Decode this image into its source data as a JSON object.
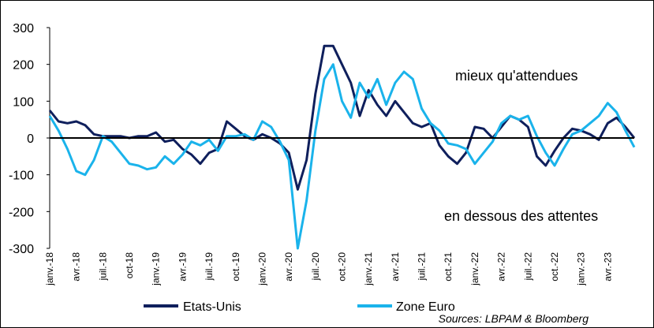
{
  "chart_data": {
    "type": "line",
    "title": "",
    "xlabel": "",
    "ylabel": "",
    "ylim": [
      -300,
      300
    ],
    "yticks": [
      300,
      200,
      100,
      0,
      -100,
      -200,
      -300
    ],
    "xticks": [
      "janv.-18",
      "avr.-18",
      "juil.-18",
      "oct-18",
      "janv.-19",
      "avr.-19",
      "juil.-19",
      "oct.-19",
      "janv.-20",
      "avr.-20",
      "juil.-20",
      "oct.-20",
      "janv.-21",
      "avr.-21",
      "juil.-21",
      "oct.-21",
      "janv.-22",
      "avr.-22",
      "juil.-22",
      "oct.-22",
      "janv.-23",
      "avr.-23"
    ],
    "x_months_from_jan18": [
      0,
      1,
      2,
      3,
      4,
      5,
      6,
      7,
      8,
      9,
      10,
      11,
      12,
      13,
      14,
      15,
      16,
      17,
      18,
      19,
      20,
      21,
      22,
      23,
      24,
      25,
      26,
      27,
      28,
      29,
      30,
      31,
      32,
      33,
      34,
      35,
      36,
      37,
      38,
      39,
      40,
      41,
      42,
      43,
      44,
      45,
      46,
      47,
      48,
      49,
      50,
      51,
      52,
      53,
      54,
      55,
      56,
      57,
      58,
      59,
      60,
      61,
      62,
      63,
      64,
      65,
      66
    ],
    "series": [
      {
        "name": "Etats-Unis",
        "color": "#0f1f5c",
        "values": [
          75,
          45,
          40,
          45,
          35,
          10,
          5,
          5,
          5,
          0,
          5,
          5,
          15,
          -10,
          -5,
          -30,
          -45,
          -70,
          -40,
          -30,
          45,
          25,
          5,
          -5,
          10,
          0,
          -15,
          -40,
          -140,
          -60,
          120,
          250,
          250,
          200,
          150,
          60,
          130,
          90,
          60,
          100,
          70,
          40,
          30,
          40,
          -20,
          -50,
          -70,
          -40,
          30,
          25,
          0,
          30,
          60,
          50,
          30,
          -50,
          -75,
          -35,
          0,
          25,
          20,
          10,
          -5,
          40,
          55,
          30,
          0
        ]
      },
      {
        "name": "Zone Euro",
        "color": "#1ab3eb",
        "values": [
          60,
          20,
          -30,
          -90,
          -100,
          -60,
          5,
          -10,
          -40,
          -70,
          -75,
          -85,
          -80,
          -50,
          -70,
          -45,
          -10,
          -20,
          -5,
          -35,
          5,
          5,
          10,
          -5,
          45,
          30,
          -10,
          -60,
          -300,
          -170,
          20,
          160,
          200,
          100,
          55,
          150,
          110,
          160,
          90,
          150,
          180,
          160,
          80,
          40,
          20,
          -15,
          -20,
          -30,
          -70,
          -40,
          -10,
          40,
          60,
          50,
          60,
          5,
          -40,
          -75,
          -30,
          10,
          20,
          40,
          60,
          95,
          70,
          20,
          -25
        ]
      }
    ],
    "legend": {
      "position": "bottom",
      "entries": [
        "Etats-Unis",
        "Zone Euro"
      ]
    },
    "annotations": [
      "mieux qu'attendues",
      "en dessous des attentes"
    ],
    "source": "Sources: LBPAM & Bloomberg",
    "grid": false
  }
}
